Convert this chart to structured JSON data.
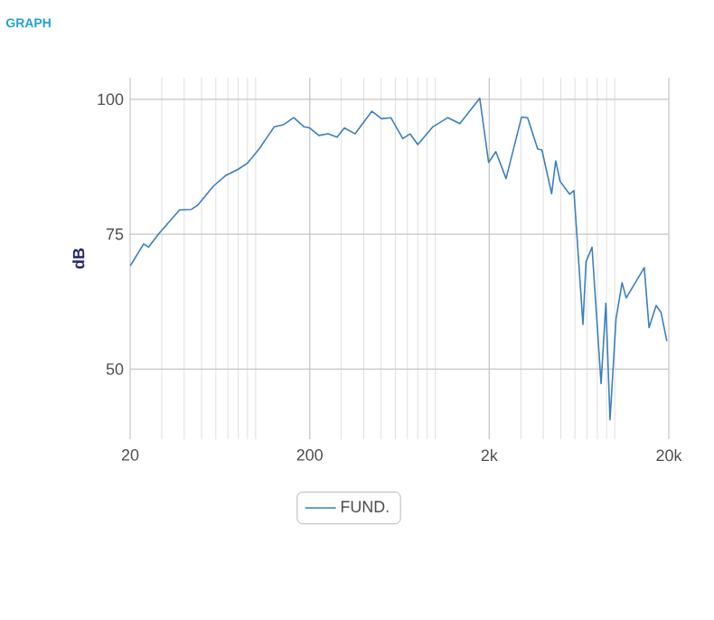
{
  "chart_data": {
    "type": "line",
    "title": "GRAPH",
    "ylabel": "dB",
    "log": "x",
    "grid": true,
    "legend": "bottom",
    "marker": "none",
    "line_style": "solid",
    "xlim": [
      20,
      20000
    ],
    "xticks": [
      20,
      200,
      {
        "value": 2000,
        "label": "2k"
      },
      {
        "value": 20000,
        "label": "20k"
      }
    ],
    "ylim": [
      37,
      104
    ],
    "yticks": [
      50,
      75,
      100
    ],
    "series": [
      {
        "name": "FUND.",
        "color": "#3a7fc0",
        "x": [
          20,
          23.8,
          25.3,
          28.9,
          37.7,
          43.9,
          47.6,
          58.1,
          68.2,
          79.6,
          89.6,
          104.6,
          117.6,
          127,
          143,
          163,
          186,
          200,
          225,
          253,
          284,
          312,
          358,
          444,
          503,
          566,
          660,
          724,
          800,
          970,
          1176,
          1372,
          1770,
          1984,
          2176,
          2480,
          3025,
          3270,
          3720,
          3930,
          4450,
          4690,
          4960,
          5610,
          5920,
          6650,
          6920,
          7470,
          8390,
          8920,
          9410,
          10170,
          10980,
          11580,
          14600,
          15520,
          17000,
          18100,
          19500
        ],
        "values": [
          69.1,
          73.2,
          72.6,
          75.1,
          79.5,
          79.6,
          80.4,
          83.9,
          85.9,
          87.0,
          88.1,
          90.8,
          93.3,
          94.9,
          95.3,
          96.6,
          94.9,
          94.7,
          93.3,
          93.6,
          93.0,
          94.7,
          93.6,
          97.8,
          96.4,
          96.6,
          92.7,
          93.6,
          91.6,
          94.9,
          96.6,
          95.5,
          100.2,
          88.3,
          90.3,
          85.3,
          96.7,
          96.6,
          90.8,
          90.6,
          82.5,
          88.6,
          84.8,
          82.4,
          83.1,
          58.3,
          69.9,
          72.6,
          47.3,
          62.2,
          40.6,
          59.4,
          66.0,
          63.2,
          68.8,
          57.7,
          61.8,
          60.5,
          55.2
        ]
      }
    ]
  }
}
